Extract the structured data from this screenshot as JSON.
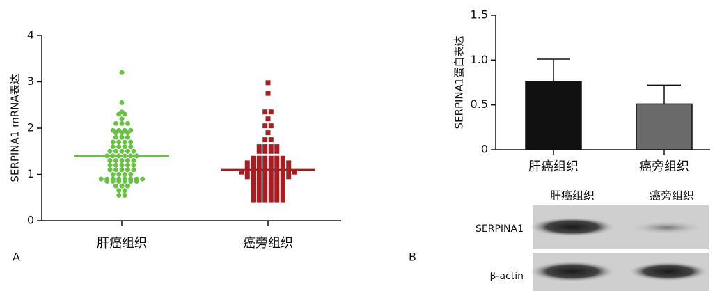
{
  "chart_data": [
    {
      "type": "dot",
      "y_label": "SERPINA1 mRNA表达",
      "categories": [
        "肝癌组织",
        "癌旁组织"
      ],
      "colors": [
        "#6cc04a",
        "#a31f24"
      ],
      "values": [
        [
          3.2,
          2.55,
          2.35,
          2.3,
          2.3,
          2.2,
          2.1,
          2.1,
          2.1,
          1.95,
          1.95,
          1.95,
          1.95,
          1.9,
          1.9,
          1.9,
          1.8,
          1.8,
          1.8,
          1.7,
          1.7,
          1.7,
          1.7,
          1.6,
          1.6,
          1.6,
          1.6,
          1.5,
          1.5,
          1.5,
          1.5,
          1.5,
          1.4,
          1.4,
          1.4,
          1.4,
          1.4,
          1.4,
          1.3,
          1.3,
          1.3,
          1.3,
          1.3,
          1.2,
          1.2,
          1.2,
          1.2,
          1.2,
          1.1,
          1.1,
          1.1,
          1.1,
          1.1,
          1.0,
          1.0,
          1.0,
          1.0,
          0.9,
          0.9,
          0.9,
          0.9,
          0.9,
          0.9,
          0.9,
          0.9,
          0.85,
          0.85,
          0.85,
          0.85,
          0.85,
          0.85,
          0.75,
          0.75,
          0.75,
          0.65,
          0.65,
          0.55,
          0.55
        ],
        [
          2.98,
          2.75,
          2.35,
          2.35,
          2.2,
          2.05,
          2.05,
          1.9,
          1.75,
          1.75,
          1.6,
          1.6,
          1.6,
          1.6,
          1.5,
          1.5,
          1.5,
          1.5,
          1.35,
          1.35,
          1.35,
          1.35,
          1.35,
          1.35,
          1.25,
          1.25,
          1.25,
          1.25,
          1.25,
          1.25,
          1.25,
          1.25,
          1.15,
          1.15,
          1.15,
          1.15,
          1.15,
          1.15,
          1.15,
          1.15,
          1.05,
          1.05,
          1.05,
          1.05,
          1.05,
          1.05,
          1.05,
          1.05,
          1.05,
          1.05,
          0.95,
          0.95,
          0.95,
          0.95,
          0.95,
          0.95,
          0.95,
          0.95,
          0.85,
          0.85,
          0.85,
          0.85,
          0.85,
          0.85,
          0.75,
          0.75,
          0.75,
          0.75,
          0.75,
          0.75,
          0.65,
          0.65,
          0.65,
          0.65,
          0.65,
          0.65,
          0.55,
          0.55,
          0.55,
          0.55,
          0.55,
          0.55,
          0.45,
          0.45,
          0.45,
          0.45,
          0.45,
          0.45
        ]
      ],
      "means": [
        1.4,
        1.1
      ],
      "ylim": [
        0,
        4
      ],
      "yticks": [
        0,
        1,
        2,
        3,
        4
      ]
    },
    {
      "type": "bar",
      "y_label": "SERPINA1蛋白表达",
      "categories": [
        "肝癌组织",
        "癌旁组织"
      ],
      "colors": [
        "#111111",
        "#6a6a6a"
      ],
      "values": [
        0.76,
        0.51
      ],
      "errors": [
        0.25,
        0.21
      ],
      "ylim": [
        0,
        1.5
      ],
      "yticks": [
        0,
        0.5,
        {
          "value": 1,
          "label": "1.0"
        },
        1.5
      ]
    }
  ],
  "panel_labels": [
    "A",
    "B"
  ],
  "blot": {
    "columns": [
      "肝癌组织",
      "癌旁组织"
    ],
    "rows": [
      "SERPINA1",
      "β-actin"
    ]
  }
}
